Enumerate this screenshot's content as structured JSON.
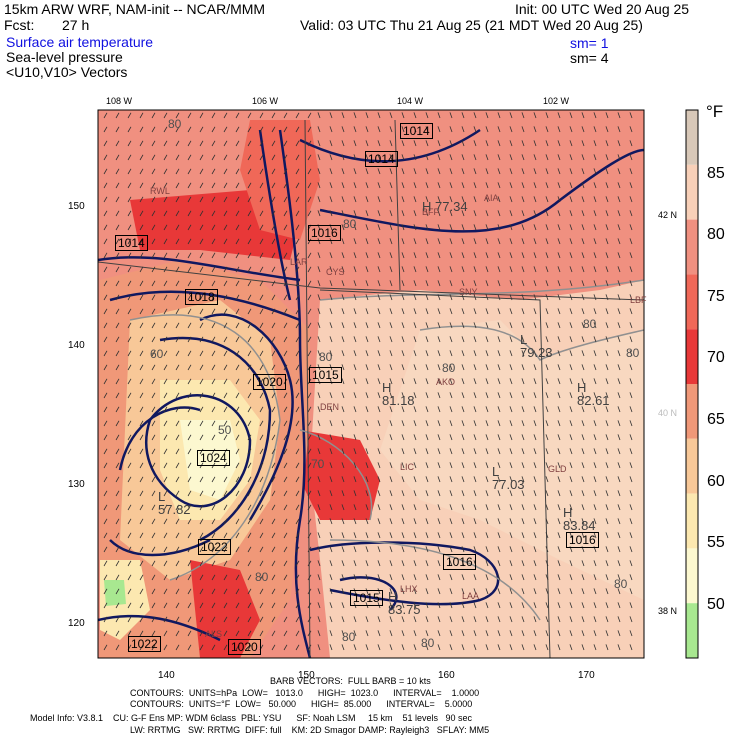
{
  "header": {
    "model": "15km ARW WRF, NAM-init -- NCAR/MMM",
    "init": "Init: 00 UTC Wed 20 Aug 25",
    "fcst_label": "Fcst:",
    "fcst_value": "27 h",
    "valid": "Valid: 03 UTC Thu 21 Aug 25 (21 MDT Wed 20 Aug 25)",
    "fields": [
      {
        "name": "Surface air temperature",
        "sm": ""
      },
      {
        "name": "Sea-level pressure",
        "sm": "sm= 1"
      },
      {
        "name": "<U10,V10> Vectors",
        "sm": "sm= 4"
      }
    ]
  },
  "map": {
    "lon_labels": [
      "108 W",
      "106 W",
      "104 W",
      "102 W"
    ],
    "lat_labels_right": [
      "42 N",
      "40 N",
      "38 N"
    ],
    "grid_y_labels": [
      "150",
      "140",
      "130",
      "120"
    ],
    "grid_x_labels": [
      "140",
      "150",
      "160",
      "170"
    ],
    "stations": [
      "RWL",
      "LAR",
      "CYS",
      "BFF",
      "AIA",
      "SNY",
      "AKO",
      "DEN",
      "LIC",
      "GLD",
      "LHX",
      "LAA",
      "ALS",
      "LBF"
    ],
    "pressure_boxes": [
      "1014",
      "1014",
      "1016",
      "1014",
      "1018",
      "1020",
      "1015",
      "1024",
      "1022",
      "1016",
      "1015",
      "1016",
      "1022",
      "1020"
    ],
    "highs": [
      {
        "label": "H",
        "value": "77.34"
      },
      {
        "label": "H",
        "value": "81.18"
      },
      {
        "label": "H",
        "value": "82.61"
      },
      {
        "label": "H",
        "value": "83.75"
      },
      {
        "label": "H",
        "value": "83.84"
      },
      {
        "label": "L",
        "value": "79.23"
      },
      {
        "label": "L",
        "value": "77.03"
      },
      {
        "label": "L",
        "value": "57.82"
      }
    ],
    "temp_contour_labels": [
      "80",
      "80",
      "80",
      "80",
      "80",
      "80",
      "70",
      "60",
      "50",
      "80",
      "80",
      "80",
      "80"
    ]
  },
  "colorbar": {
    "unit": "°F",
    "levels": [
      "85",
      "80",
      "75",
      "70",
      "65",
      "60",
      "55",
      "50"
    ],
    "colors": [
      "#d8c8b8",
      "#f8d0b8",
      "#f09080",
      "#f06858",
      "#e83838",
      "#f09878",
      "#f8c898",
      "#fce8b0",
      "#fcf8d0",
      "#a8e890"
    ]
  },
  "footer": {
    "barb": "BARB VECTORS:  FULL BARB = 10 kts",
    "contours1": "CONTOURS:  UNITS=hPa  LOW=   1013.0      HIGH=  1023.0      INTERVAL=    1.0000",
    "contours2": "CONTOURS:  UNITS=°F  LOW=   50.000      HIGH=  85.000      INTERVAL=    5.0000",
    "model_info1": "Model Info: V3.8.1    CU: G-F Ens MP: WDM 6class  PBL: YSU      SF: Noah LSM     15 km    51 levels   90 sec",
    "model_info2": "LW: RRTMG   SW: RRTMG  DIFF: full    KM: 2D Smagor DAMP: Rayleigh3   SFLAY: MM5"
  }
}
